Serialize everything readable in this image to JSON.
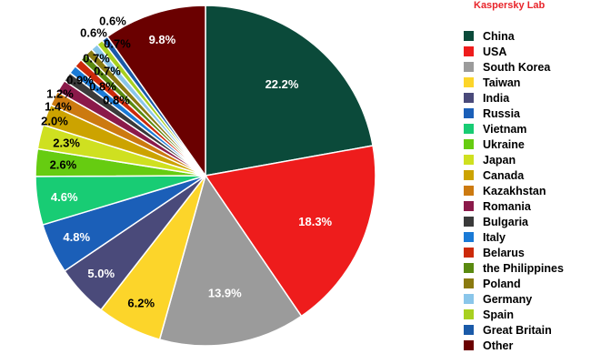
{
  "brand": {
    "text": "Kaspersky Lab",
    "color": "#e8242a"
  },
  "chart_data": {
    "type": "pie",
    "title": "",
    "categories": [
      "China",
      "USA",
      "South Korea",
      "Taiwan",
      "India",
      "Russia",
      "Vietnam",
      "Ukraine",
      "Japan",
      "Canada",
      "Kazakhstan",
      "Romania",
      "Bulgaria",
      "Italy",
      "Belarus",
      "the Philippines",
      "Poland",
      "Germany",
      "Spain",
      "Great Britain",
      "Other"
    ],
    "values": [
      22.2,
      18.3,
      13.9,
      6.2,
      5.0,
      4.8,
      4.6,
      2.6,
      2.3,
      2.0,
      1.4,
      1.2,
      0.9,
      0.8,
      0.8,
      0.7,
      0.7,
      0.7,
      0.6,
      0.6,
      9.8
    ],
    "labels": [
      "22.2%",
      "18.3%",
      "13.9%",
      "6.2%",
      "5.0%",
      "4.8%",
      "4.6%",
      "2.6%",
      "2.3%",
      "2.0%",
      "1.4%",
      "1.2%",
      "0.9%",
      "0.8%",
      "0.8%",
      "0.7%",
      "0.7%",
      "0.7%",
      "0.6%",
      "0.6%",
      "9.8%"
    ],
    "colors": [
      "#0b4a3a",
      "#ee1c1c",
      "#9b9b9b",
      "#fcd52a",
      "#4a4a7a",
      "#1b5fb8",
      "#18cc74",
      "#66cc11",
      "#cfe020",
      "#cca300",
      "#cc7a10",
      "#8b1a4a",
      "#3a3a3a",
      "#1a7ad6",
      "#cc2a0a",
      "#5a8a10",
      "#8a7a10",
      "#8ac6ea",
      "#a8d020",
      "#1a5aa8",
      "#6a0000"
    ],
    "legend_position": "right"
  }
}
